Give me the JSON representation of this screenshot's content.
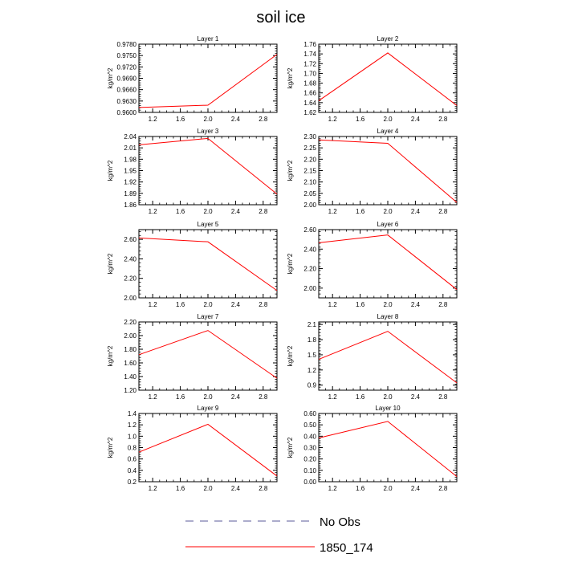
{
  "title": "soil ice",
  "legend": [
    {
      "label": "No Obs",
      "style": "dashed",
      "color": "#5a5a9a"
    },
    {
      "label": "1850_174",
      "style": "solid",
      "color": "#ff0000"
    }
  ],
  "chart_data": [
    {
      "type": "line",
      "title": "Layer 1",
      "ylabel": "kg/m^2",
      "x": [
        1.0,
        2.0,
        3.0
      ],
      "series": [
        {
          "name": "1850_174",
          "values": [
            0.9613,
            0.9619,
            0.9753
          ]
        }
      ],
      "xlim": [
        1.0,
        3.0
      ],
      "ylim": [
        0.96,
        0.978
      ],
      "xticks": [
        "1.2",
        "1.6",
        "2.0",
        "2.4",
        "2.8"
      ],
      "xtick_values": [
        1.2,
        1.6,
        2.0,
        2.4,
        2.8
      ],
      "yticks": [
        "0.9600",
        "0.9630",
        "0.9660",
        "0.9690",
        "0.9720",
        "0.9750",
        "0.9780"
      ],
      "ytick_values": [
        0.96,
        0.963,
        0.966,
        0.969,
        0.972,
        0.975,
        0.978
      ]
    },
    {
      "type": "line",
      "title": "Layer 2",
      "ylabel": "kg/m^2",
      "x": [
        1.0,
        2.0,
        3.0
      ],
      "series": [
        {
          "name": "1850_174",
          "values": [
            1.644,
            1.742,
            1.634
          ]
        }
      ],
      "xlim": [
        1.0,
        3.0
      ],
      "ylim": [
        1.62,
        1.76
      ],
      "xticks": [
        "1.2",
        "1.6",
        "2.0",
        "2.4",
        "2.8"
      ],
      "xtick_values": [
        1.2,
        1.6,
        2.0,
        2.4,
        2.8
      ],
      "yticks": [
        "1.62",
        "1.64",
        "1.66",
        "1.68",
        "1.70",
        "1.72",
        "1.74",
        "1.76"
      ],
      "ytick_values": [
        1.62,
        1.64,
        1.66,
        1.68,
        1.7,
        1.72,
        1.74,
        1.76
      ]
    },
    {
      "type": "line",
      "title": "Layer 3",
      "ylabel": "kg/m^2",
      "x": [
        1.0,
        2.0,
        3.0
      ],
      "series": [
        {
          "name": "1850_174",
          "values": [
            2.018,
            2.035,
            1.888
          ]
        }
      ],
      "xlim": [
        1.0,
        3.0
      ],
      "ylim": [
        1.86,
        2.04
      ],
      "xticks": [
        "1.2",
        "1.6",
        "2.0",
        "2.4",
        "2.8"
      ],
      "xtick_values": [
        1.2,
        1.6,
        2.0,
        2.4,
        2.8
      ],
      "yticks": [
        "1.86",
        "1.89",
        "1.92",
        "1.95",
        "1.98",
        "2.01",
        "2.04"
      ],
      "ytick_values": [
        1.86,
        1.89,
        1.92,
        1.95,
        1.98,
        2.01,
        2.04
      ]
    },
    {
      "type": "line",
      "title": "Layer 4",
      "ylabel": "kg/m^2",
      "x": [
        1.0,
        2.0,
        3.0
      ],
      "series": [
        {
          "name": "1850_174",
          "values": [
            2.285,
            2.27,
            2.01
          ]
        }
      ],
      "xlim": [
        1.0,
        3.0
      ],
      "ylim": [
        2.0,
        2.3
      ],
      "xticks": [
        "1.2",
        "1.6",
        "2.0",
        "2.4",
        "2.8"
      ],
      "xtick_values": [
        1.2,
        1.6,
        2.0,
        2.4,
        2.8
      ],
      "yticks": [
        "2.00",
        "2.05",
        "2.10",
        "2.15",
        "2.20",
        "2.25",
        "2.30"
      ],
      "ytick_values": [
        2.0,
        2.05,
        2.1,
        2.15,
        2.2,
        2.25,
        2.3
      ]
    },
    {
      "type": "line",
      "title": "Layer 5",
      "ylabel": "kg/m^2",
      "x": [
        1.0,
        2.0,
        3.0
      ],
      "series": [
        {
          "name": "1850_174",
          "values": [
            2.615,
            2.575,
            2.075
          ]
        }
      ],
      "xlim": [
        1.0,
        3.0
      ],
      "ylim": [
        2.0,
        2.7
      ],
      "xticks": [
        "1.2",
        "1.6",
        "2.0",
        "2.4",
        "2.8"
      ],
      "xtick_values": [
        1.2,
        1.6,
        2.0,
        2.4,
        2.8
      ],
      "yticks": [
        "2.00",
        "2.20",
        "2.40",
        "2.60"
      ],
      "ytick_values": [
        2.0,
        2.2,
        2.4,
        2.6
      ]
    },
    {
      "type": "line",
      "title": "Layer 6",
      "ylabel": "kg/m^2",
      "x": [
        1.0,
        2.0,
        3.0
      ],
      "series": [
        {
          "name": "1850_174",
          "values": [
            2.465,
            2.545,
            1.985
          ]
        }
      ],
      "xlim": [
        1.0,
        3.0
      ],
      "ylim": [
        1.9,
        2.6
      ],
      "xticks": [
        "1.2",
        "1.6",
        "2.0",
        "2.4",
        "2.8"
      ],
      "xtick_values": [
        1.2,
        1.6,
        2.0,
        2.4,
        2.8
      ],
      "yticks": [
        "2.00",
        "2.20",
        "2.40",
        "2.60"
      ],
      "ytick_values": [
        2.0,
        2.2,
        2.4,
        2.6
      ]
    },
    {
      "type": "line",
      "title": "Layer 7",
      "ylabel": "kg/m^2",
      "x": [
        1.0,
        2.0,
        3.0
      ],
      "series": [
        {
          "name": "1850_174",
          "values": [
            1.72,
            2.075,
            1.375
          ]
        }
      ],
      "xlim": [
        1.0,
        3.0
      ],
      "ylim": [
        1.2,
        2.2
      ],
      "xticks": [
        "1.2",
        "1.6",
        "2.0",
        "2.4",
        "2.8"
      ],
      "xtick_values": [
        1.2,
        1.6,
        2.0,
        2.4,
        2.8
      ],
      "yticks": [
        "1.20",
        "1.40",
        "1.60",
        "1.80",
        "2.00",
        "2.20"
      ],
      "ytick_values": [
        1.2,
        1.4,
        1.6,
        1.8,
        2.0,
        2.2
      ]
    },
    {
      "type": "line",
      "title": "Layer 8",
      "ylabel": "kg/m^2",
      "x": [
        1.0,
        2.0,
        3.0
      ],
      "series": [
        {
          "name": "1850_174",
          "values": [
            1.41,
            1.965,
            0.945
          ]
        }
      ],
      "xlim": [
        1.0,
        3.0
      ],
      "ylim": [
        0.8,
        2.15
      ],
      "xticks": [
        "1.2",
        "1.6",
        "2.0",
        "2.4",
        "2.8"
      ],
      "xtick_values": [
        1.2,
        1.6,
        2.0,
        2.4,
        2.8
      ],
      "yticks": [
        "0.9",
        "1.2",
        "1.5",
        "1.8",
        "2.1"
      ],
      "ytick_values": [
        0.9,
        1.2,
        1.5,
        1.8,
        2.1
      ]
    },
    {
      "type": "line",
      "title": "Layer 9",
      "ylabel": "kg/m^2",
      "x": [
        1.0,
        2.0,
        3.0
      ],
      "series": [
        {
          "name": "1850_174",
          "values": [
            0.72,
            1.21,
            0.3
          ]
        }
      ],
      "xlim": [
        1.0,
        3.0
      ],
      "ylim": [
        0.2,
        1.4
      ],
      "xticks": [
        "1.2",
        "1.6",
        "2.0",
        "2.4",
        "2.8"
      ],
      "xtick_values": [
        1.2,
        1.6,
        2.0,
        2.4,
        2.8
      ],
      "yticks": [
        "0.2",
        "0.4",
        "0.6",
        "0.8",
        "1.0",
        "1.2",
        "1.4"
      ],
      "ytick_values": [
        0.2,
        0.4,
        0.6,
        0.8,
        1.0,
        1.2,
        1.4
      ]
    },
    {
      "type": "line",
      "title": "Layer 10",
      "ylabel": "kg/m^2",
      "x": [
        1.0,
        2.0,
        3.0
      ],
      "series": [
        {
          "name": "1850_174",
          "values": [
            0.385,
            0.53,
            0.045
          ]
        }
      ],
      "xlim": [
        1.0,
        3.0
      ],
      "ylim": [
        0.0,
        0.6
      ],
      "xticks": [
        "1.2",
        "1.6",
        "2.0",
        "2.4",
        "2.8"
      ],
      "xtick_values": [
        1.2,
        1.6,
        2.0,
        2.4,
        2.8
      ],
      "yticks": [
        "0.00",
        "0.10",
        "0.20",
        "0.30",
        "0.40",
        "0.50",
        "0.60"
      ],
      "ytick_values": [
        0.0,
        0.1,
        0.2,
        0.3,
        0.4,
        0.5,
        0.6
      ]
    }
  ]
}
